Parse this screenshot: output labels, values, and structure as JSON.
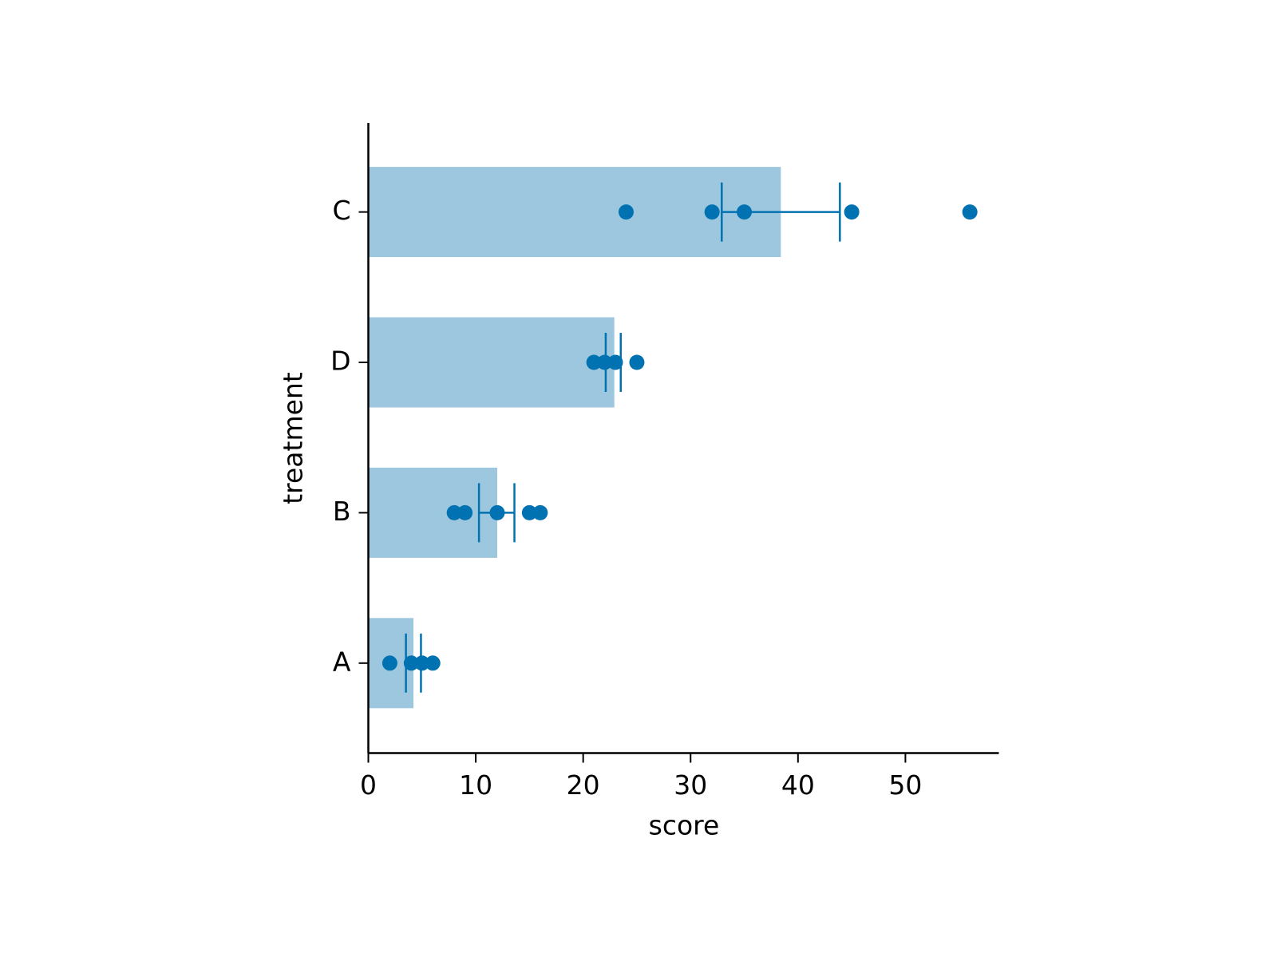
{
  "chart_data": {
    "type": "bar",
    "orientation": "horizontal",
    "x_label": "score",
    "y_label": "treatment",
    "categories": [
      "C",
      "D",
      "B",
      "A"
    ],
    "values": [
      38.4,
      22.9,
      12.0,
      4.2
    ],
    "color": "#9dc7df",
    "points": [
      [
        24,
        32,
        35,
        45,
        56
      ],
      [
        21,
        22,
        23,
        25
      ],
      [
        8,
        9,
        12,
        15,
        16
      ],
      [
        2,
        4,
        5,
        6
      ]
    ],
    "point_color": "#0072b2",
    "ci": [
      [
        32.9,
        43.9
      ],
      [
        22.1,
        23.5
      ],
      [
        10.3,
        13.6
      ],
      [
        3.5,
        4.9
      ]
    ],
    "xlim": [
      0,
      58.7
    ],
    "xticks": [
      0,
      10,
      20,
      30,
      40,
      50
    ],
    "grid": false
  }
}
